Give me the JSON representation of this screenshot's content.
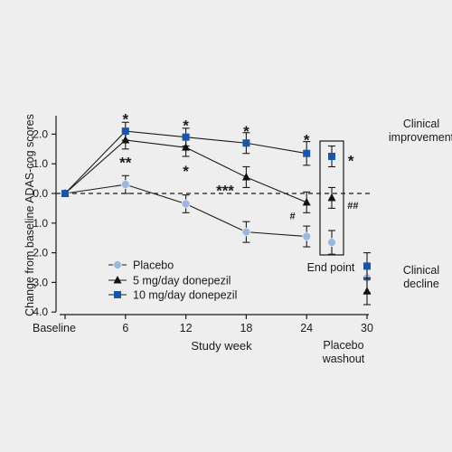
{
  "chart_data": {
    "type": "line",
    "ylabel": "Change from baseline ADAS-cog scores",
    "xlabel": "Study week",
    "categories": [
      "Baseline",
      "6",
      "12",
      "18",
      "24",
      "30"
    ],
    "x": [
      0,
      6,
      12,
      18,
      24,
      30
    ],
    "ylim": [
      -2.5,
      4.0
    ],
    "y_inverted": true,
    "y_ticks": [
      "-2.0",
      "-1.0",
      "0.0",
      "1.0",
      "2.0",
      "3.0",
      "4.0"
    ],
    "y_tick_values": [
      -2,
      -1,
      0,
      1,
      2,
      3,
      4
    ],
    "legend_position": "lower-left",
    "series": [
      {
        "name": "Placebo",
        "marker": "circle",
        "color": "#9ab8dc",
        "x": [
          0,
          6,
          12,
          18,
          24
        ],
        "values": [
          0.0,
          -0.3,
          0.35,
          1.3,
          1.45
        ],
        "errors": [
          0,
          0.3,
          0.3,
          0.35,
          0.35
        ],
        "endpoint": {
          "value": 1.65,
          "error": 0.4
        },
        "washout": {
          "x": 30,
          "value": 2.85,
          "error": 0.5
        }
      },
      {
        "name": "5 mg/day donepezil",
        "marker": "triangle",
        "color": "#111111",
        "x": [
          0,
          6,
          12,
          18,
          24
        ],
        "values": [
          0.0,
          -1.8,
          -1.55,
          -0.55,
          0.3
        ],
        "errors": [
          0,
          0.3,
          0.3,
          0.35,
          0.35
        ],
        "endpoint": {
          "value": 0.15,
          "error": 0.35
        },
        "washout": {
          "x": 30,
          "value": 3.3,
          "error": 0.45
        }
      },
      {
        "name": "10 mg/day donepezil",
        "marker": "square",
        "color": "#1a55a8",
        "x": [
          0,
          6,
          12,
          18,
          24
        ],
        "values": [
          0.0,
          -2.1,
          -1.9,
          -1.7,
          -1.35
        ],
        "errors": [
          0,
          0.3,
          0.3,
          0.35,
          0.4
        ],
        "endpoint": {
          "value": -1.25,
          "error": 0.35
        },
        "washout": {
          "x": 30,
          "value": 2.45,
          "error": 0.45
        }
      }
    ],
    "annotations": {
      "clinical_improvement": [
        "Clinical",
        "improvement"
      ],
      "clinical_decline": [
        "Clinical",
        "decline"
      ],
      "end_point": "End point",
      "placebo_washout": [
        "Placebo",
        "washout"
      ],
      "significance": [
        {
          "text": "*",
          "x": 6,
          "y": -2.6
        },
        {
          "text": "**",
          "x": 6,
          "y": -1.15
        },
        {
          "text": "*",
          "x": 12,
          "y": -2.4
        },
        {
          "text": "*",
          "x": 12,
          "y": -0.85
        },
        {
          "text": "*",
          "x": 18,
          "y": -2.2
        },
        {
          "text": "***",
          "x": 15.9,
          "y": -0.2
        },
        {
          "text": "*",
          "x": 24,
          "y": -1.9
        },
        {
          "text": "#",
          "x": 22.6,
          "y": 0.75
        },
        {
          "text": "*",
          "x": 28.4,
          "y": -1.2
        },
        {
          "text": "##",
          "x": 28.6,
          "y": 0.4
        }
      ]
    }
  }
}
